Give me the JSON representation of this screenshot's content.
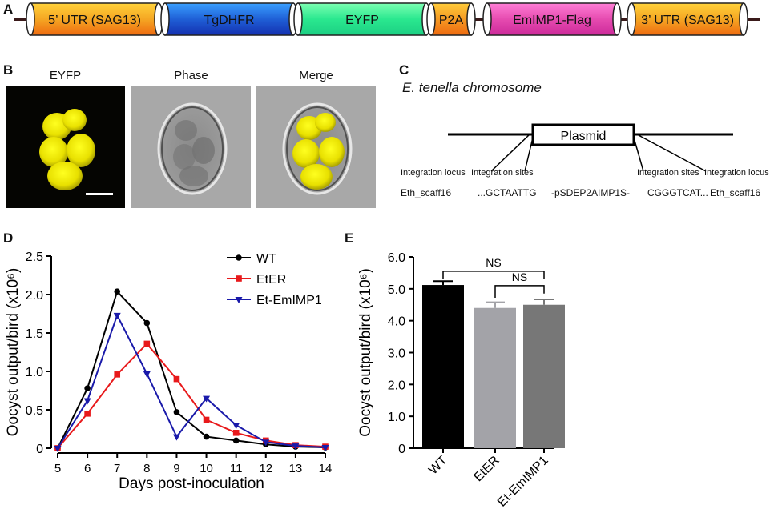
{
  "panels": {
    "a": {
      "letter": "A"
    },
    "b": {
      "letter": "B"
    },
    "c": {
      "letter": "C"
    },
    "d": {
      "letter": "D"
    },
    "e": {
      "letter": "E"
    }
  },
  "construct": {
    "segments": [
      {
        "label": "5’ UTR (SAG13)",
        "color": "#f59a1d"
      },
      {
        "label": "TgDHFR",
        "color": "#1f5fd6"
      },
      {
        "label": "EYFP",
        "color": "#27e08a"
      },
      {
        "label": "P2A",
        "color": "#f39c24"
      },
      {
        "label": "EmIMP1-Flag",
        "color": "#e64bb0"
      },
      {
        "label": "3’ UTR (SAG13)",
        "color": "#f5a623"
      }
    ]
  },
  "microscopy": {
    "labels": [
      "EYFP",
      "Phase",
      "Merge"
    ]
  },
  "integration": {
    "title": "E. tenella chromosome",
    "plasmid": "Plasmid",
    "locus_left": "Integration locus",
    "sites_left": "Integration sites",
    "sites_right": "Integration sites",
    "locus_right": "Integration locus",
    "scaff_left": "Eth_scaff16",
    "seq_left": "...GCTAATTG",
    "insert": "-pSDEP2AIMP1S-",
    "seq_right": "CGGGTCAT...",
    "scaff_right": "Eth_scaff16"
  },
  "chart_data": [
    {
      "type": "line",
      "xlabel": "Days post-inoculation",
      "ylabel": "Oocyst output/bird (x10⁶)",
      "x": [
        5,
        6,
        7,
        8,
        9,
        10,
        11,
        12,
        13,
        14
      ],
      "ylim": [
        0,
        2.5
      ],
      "yticks": [
        "0",
        "0.5",
        "1.0",
        "1.5",
        "2.0",
        "2.5"
      ],
      "legend_position": "top-right",
      "series": [
        {
          "name": "WT",
          "color": "#000000",
          "marker": "circle",
          "values": [
            0,
            0.78,
            2.04,
            1.63,
            0.47,
            0.15,
            0.1,
            0.05,
            0.02,
            0.01
          ]
        },
        {
          "name": "EtER",
          "color": "#e8191b",
          "marker": "square",
          "values": [
            0,
            0.45,
            0.96,
            1.36,
            0.9,
            0.37,
            0.2,
            0.1,
            0.04,
            0.02
          ]
        },
        {
          "name": "Et-EmIMP1",
          "color": "#1a1aaa",
          "marker": "triangle-down",
          "values": [
            0,
            0.62,
            1.73,
            0.97,
            0.15,
            0.65,
            0.3,
            0.08,
            0.03,
            0.01
          ]
        }
      ]
    },
    {
      "type": "bar",
      "ylabel": "Oocyst output/bird (x10⁶)",
      "categories": [
        "WT",
        "EtER",
        "Et-EmIMP1"
      ],
      "values": [
        5.12,
        4.4,
        4.5
      ],
      "errors": [
        0.12,
        0.18,
        0.17
      ],
      "colors": [
        "#000000",
        "#a3a3a8",
        "#777777"
      ],
      "ylim": [
        0,
        6.0
      ],
      "yticks": [
        "0",
        "1.0",
        "2.0",
        "3.0",
        "4.0",
        "5.0",
        "6.0"
      ],
      "annotations": [
        "NS",
        "NS"
      ]
    }
  ]
}
